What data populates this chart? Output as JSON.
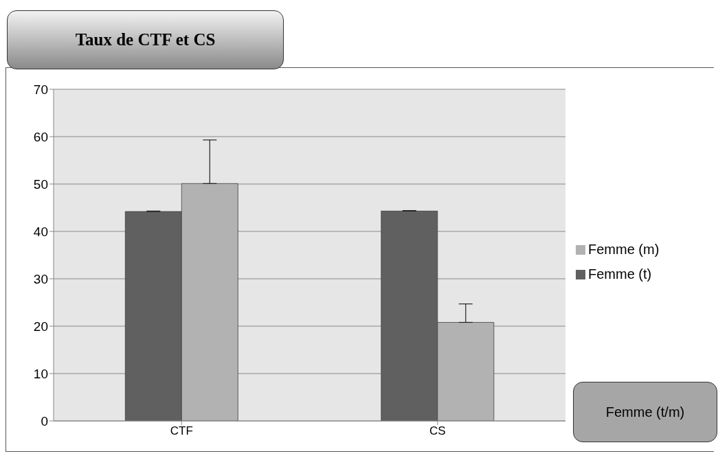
{
  "chart_data": {
    "type": "bar",
    "title": "Taux de CTF et CS",
    "categories": [
      "CTF",
      "CS"
    ],
    "series": [
      {
        "name": "Femme (t)",
        "color": "#606060",
        "values": [
          44.2,
          44.3
        ],
        "errors": [
          [
            44.2,
            44.3
          ],
          [
            44.3,
            44.4
          ]
        ]
      },
      {
        "name": "Femme (m)",
        "color": "#b2b2b2",
        "values": [
          50.1,
          20.8
        ],
        "errors": [
          [
            50.1,
            59.3
          ],
          [
            20.8,
            24.7
          ]
        ]
      }
    ],
    "ylim": [
      0,
      70
    ],
    "yticks": [
      0,
      10,
      20,
      30,
      40,
      50,
      60,
      70
    ],
    "grid": "y",
    "legend": "right",
    "annotations": [
      "Femme (t/m)"
    ]
  }
}
